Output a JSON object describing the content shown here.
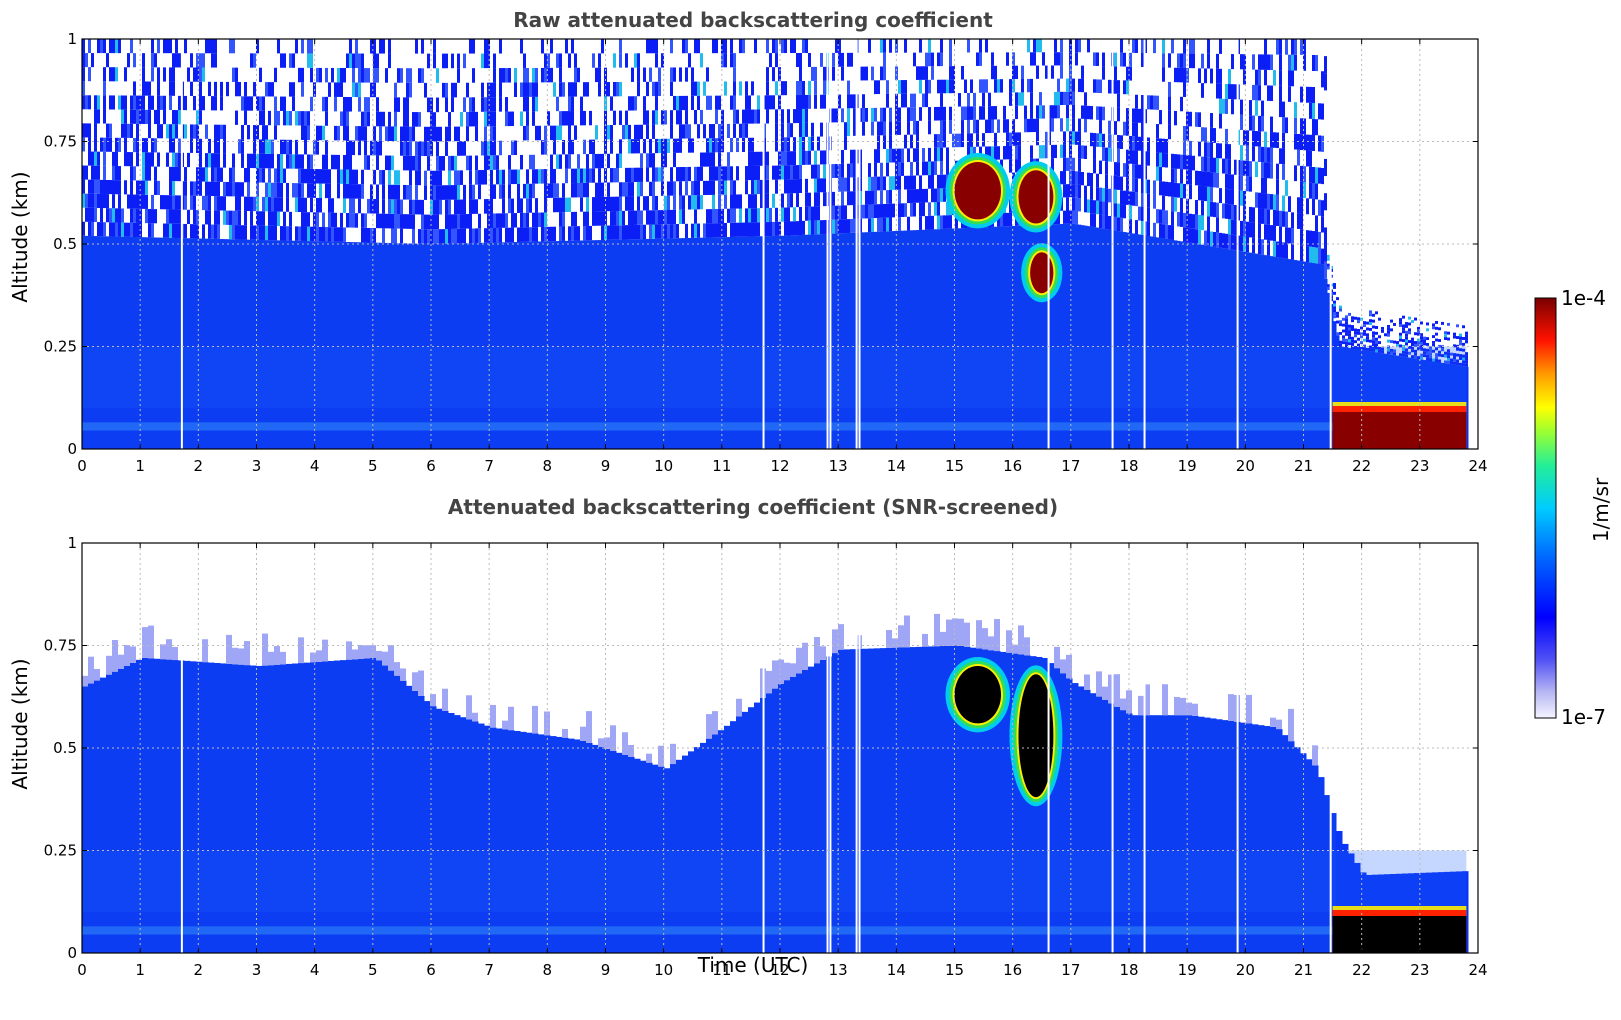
{
  "colors": {
    "low": "#eeeeff",
    "blue": "#0022ff",
    "cyan": "#00ccee",
    "green": "#33dd55",
    "yellow": "#ffee00",
    "red": "#ff2200",
    "darkred": "#880000",
    "black": "#000000",
    "grid": "#bbbbbb"
  },
  "colorbar": {
    "label": "1/m/sr",
    "max_label": "1e-4",
    "min_label": "1e-7",
    "range": [
      1e-07,
      0.0001
    ],
    "scale": "log"
  },
  "chart_data": [
    {
      "type": "heatmap",
      "title": "Raw attenuated backscattering coefficient",
      "xlabel": "",
      "ylabel": "Altitude (km)",
      "xlim": [
        0,
        24
      ],
      "ylim": [
        0,
        1
      ],
      "xticks": [
        0,
        1,
        2,
        3,
        4,
        5,
        6,
        7,
        8,
        9,
        10,
        11,
        12,
        13,
        14,
        15,
        16,
        17,
        18,
        19,
        20,
        21,
        22,
        23,
        24
      ],
      "yticks": [
        0,
        0.25,
        0.5,
        0.75,
        1
      ],
      "ytick_labels": [
        "0",
        "0.25",
        "0.5",
        "0.75",
        "1"
      ],
      "grid": true,
      "boundary_layer_top_km": [
        {
          "t": 0,
          "z": 0.52
        },
        {
          "t": 6,
          "z": 0.5
        },
        {
          "t": 12,
          "z": 0.52
        },
        {
          "t": 17,
          "z": 0.55
        },
        {
          "t": 21.3,
          "z": 0.45
        },
        {
          "t": 21.6,
          "z": 0.25
        },
        {
          "t": 23.8,
          "z": 0.2
        }
      ],
      "cloud_features": [
        {
          "t_start": 15.0,
          "t_end": 15.8,
          "z_bottom": 0.56,
          "z_top": 0.7,
          "peak": "1e-4"
        },
        {
          "t_start": 16.1,
          "t_end": 16.7,
          "z_bottom": 0.55,
          "z_top": 0.68,
          "peak": "1e-4"
        },
        {
          "t_start": 16.3,
          "t_end": 16.7,
          "z_bottom": 0.38,
          "z_top": 0.48,
          "peak": "1e-4"
        },
        {
          "t_start": 21.5,
          "t_end": 23.8,
          "z_bottom": 0.0,
          "z_top": 0.1,
          "peak": "1e-4"
        }
      ],
      "data_end_hour": 23.8
    },
    {
      "type": "heatmap",
      "title": "Attenuated backscattering coefficient (SNR-screened)",
      "xlabel": "Time (UTC)",
      "ylabel": "Altitude (km)",
      "xlim": [
        0,
        24
      ],
      "ylim": [
        0,
        1
      ],
      "xticks": [
        0,
        1,
        2,
        3,
        4,
        5,
        6,
        7,
        8,
        9,
        10,
        11,
        12,
        13,
        14,
        15,
        16,
        17,
        18,
        19,
        20,
        21,
        22,
        23,
        24
      ],
      "yticks": [
        0,
        0.25,
        0.5,
        0.75,
        1
      ],
      "ytick_labels": [
        "0",
        "0.25",
        "0.5",
        "0.75",
        "1"
      ],
      "grid": true,
      "signal_top_km": [
        {
          "t": 0,
          "z": 0.65
        },
        {
          "t": 1,
          "z": 0.72
        },
        {
          "t": 3,
          "z": 0.7
        },
        {
          "t": 5,
          "z": 0.72
        },
        {
          "t": 6,
          "z": 0.6
        },
        {
          "t": 7,
          "z": 0.55
        },
        {
          "t": 8.5,
          "z": 0.52
        },
        {
          "t": 10,
          "z": 0.45
        },
        {
          "t": 11,
          "z": 0.55
        },
        {
          "t": 12,
          "z": 0.66
        },
        {
          "t": 13,
          "z": 0.74
        },
        {
          "t": 15,
          "z": 0.75
        },
        {
          "t": 16.5,
          "z": 0.72
        },
        {
          "t": 17,
          "z": 0.66
        },
        {
          "t": 18,
          "z": 0.58
        },
        {
          "t": 19,
          "z": 0.58
        },
        {
          "t": 20.5,
          "z": 0.55
        },
        {
          "t": 21.2,
          "z": 0.45
        },
        {
          "t": 21.6,
          "z": 0.28
        },
        {
          "t": 22,
          "z": 0.19
        },
        {
          "t": 23.8,
          "z": 0.2
        }
      ],
      "cloud_features": [
        {
          "t_start": 15.0,
          "t_end": 15.8,
          "z_bottom": 0.56,
          "z_top": 0.7,
          "peak": "saturated"
        },
        {
          "t_start": 16.1,
          "t_end": 16.7,
          "z_bottom": 0.38,
          "z_top": 0.68,
          "peak": "saturated"
        },
        {
          "t_start": 21.5,
          "t_end": 23.8,
          "z_bottom": 0.0,
          "z_top": 0.1,
          "peak": "saturated"
        }
      ],
      "data_end_hour": 23.8
    }
  ]
}
